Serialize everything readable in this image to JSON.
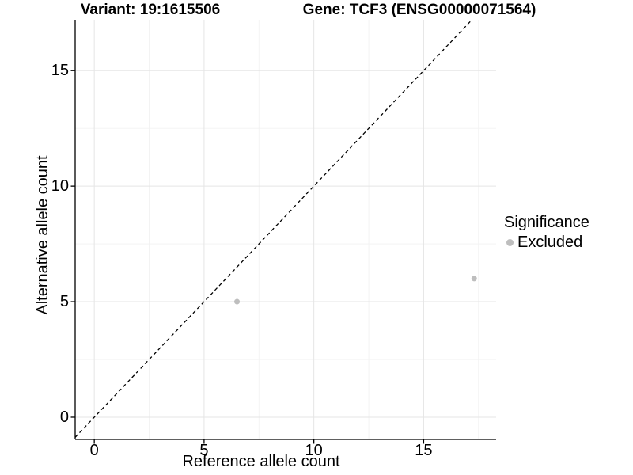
{
  "chart_data": {
    "type": "scatter",
    "title_left": "Variant: 19:1615506",
    "title_right": "Gene: TCF3 (ENSG00000071564)",
    "xlabel": "Reference allele count",
    "ylabel": "Alternative allele count",
    "x_ticks": [
      0,
      5,
      10,
      15
    ],
    "y_ticks": [
      0,
      5,
      10,
      15
    ],
    "xlim": [
      -0.87,
      18.3
    ],
    "ylim": [
      -0.96,
      17.2
    ],
    "grid": {
      "major": true,
      "minor": true,
      "legend_position": "right"
    },
    "identity_line": {
      "equation": "y = x",
      "style": "dashed",
      "color": "#000000"
    },
    "legend": {
      "title": "Significance",
      "entries": [
        {
          "label": "Excluded",
          "color": "#bebebe"
        }
      ]
    },
    "series": [
      {
        "name": "Excluded",
        "color": "#bebebe",
        "points": [
          {
            "x": 6.5,
            "y": 5
          },
          {
            "x": 17.3,
            "y": 6
          }
        ]
      }
    ],
    "colors": {
      "background": "#ffffff",
      "grid_major": "#e5e5e5",
      "grid_minor": "#f2f2f2",
      "axis": "#000000",
      "text": "#000000"
    }
  }
}
